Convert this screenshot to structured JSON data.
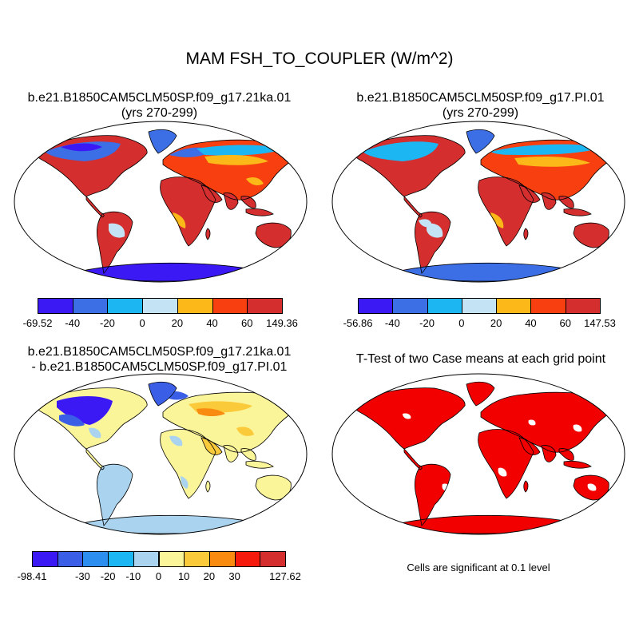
{
  "title": "MAM FSH_TO_COUPLER (W/m^2)",
  "panels": [
    {
      "title1": "b.e21.B1850CAM5CLM50SP.f09_g17.21ka.01",
      "title2": "(yrs 270-299)"
    },
    {
      "title1": "b.e21.B1850CAM5CLM50SP.f09_g17.PI.01",
      "title2": "(yrs 270-299)"
    },
    {
      "title1": "b.e21.B1850CAM5CLM50SP.f09_g17.21ka.01",
      "title2": "- b.e21.B1850CAM5CLM50SP.f09_g17.PI.01"
    },
    {
      "title1": "T-Test of two Case means at each grid point"
    }
  ],
  "legends": [
    {
      "colors": [
        "#3b19f4",
        "#3c6ee6",
        "#1cb6f2",
        "#c4e3f4",
        "#fbb818",
        "#f73f10",
        "#d42e2e"
      ],
      "labels": [
        "-69.52",
        "-40",
        "-20",
        "0",
        "20",
        "40",
        "60",
        "149.36"
      ]
    },
    {
      "colors": [
        "#3b19f4",
        "#3c6ee6",
        "#1cb6f2",
        "#c4e3f4",
        "#fbb818",
        "#f73f10",
        "#d42e2e"
      ],
      "labels": [
        "-56.86",
        "-40",
        "-20",
        "0",
        "20",
        "40",
        "60",
        "147.53"
      ]
    },
    {
      "colors": [
        "#3b19f4",
        "#3a5fe6",
        "#2c8ff0",
        "#1cb6f2",
        "#a9d3ee",
        "#fbf59a",
        "#fbca3a",
        "#f88b10",
        "#f51a0c",
        "#d42e2e"
      ],
      "labels": [
        "-98.41",
        "",
        "-30",
        "-20",
        "-10",
        "0",
        "10",
        "20",
        "30",
        "",
        "127.62"
      ]
    }
  ],
  "note": "Cells are significant at 0.1 level",
  "colors": {
    "land_outline": "#000000",
    "ocean": "#ffffff",
    "significant": "#f20000"
  }
}
